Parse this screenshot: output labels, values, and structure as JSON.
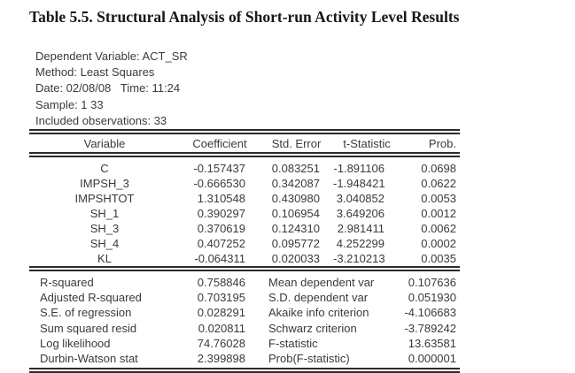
{
  "caption": "Table 5.5. Structural Analysis of Short-run Activity Level Results",
  "report_header": {
    "lines": [
      {
        "text": "Dependent Variable: ACT_SR"
      },
      {
        "text": "Method: Least Squares"
      },
      {
        "text": "Date: 02/08/08   Time: 11:24"
      },
      {
        "text": "Sample: 1 33"
      },
      {
        "text": "Included observations: 33"
      }
    ]
  },
  "coef_table": {
    "columns": [
      "Variable",
      "Coefficient",
      "Std. Error",
      "t-Statistic",
      "Prob."
    ],
    "rows": [
      {
        "variable": "C",
        "coefficient": "-0.157437",
        "std_error": "0.083251",
        "t_statistic": "-1.891106",
        "prob": "0.0698"
      },
      {
        "variable": "IMPSH_3",
        "coefficient": "-0.666530",
        "std_error": "0.342087",
        "t_statistic": "-1.948421",
        "prob": "0.0622"
      },
      {
        "variable": "IMPSHTOT",
        "coefficient": "1.310548",
        "std_error": "0.430980",
        "t_statistic": "3.040852",
        "prob": "0.0053"
      },
      {
        "variable": "SH_1",
        "coefficient": "0.390297",
        "std_error": "0.106954",
        "t_statistic": "3.649206",
        "prob": "0.0012"
      },
      {
        "variable": "SH_3",
        "coefficient": "0.370619",
        "std_error": "0.124310",
        "t_statistic": "2.981411",
        "prob": "0.0062"
      },
      {
        "variable": "SH_4",
        "coefficient": "0.407252",
        "std_error": "0.095772",
        "t_statistic": "4.252299",
        "prob": "0.0002"
      },
      {
        "variable": "KL",
        "coefficient": "-0.064311",
        "std_error": "0.020033",
        "t_statistic": "-3.210213",
        "prob": "0.0035"
      }
    ]
  },
  "summary_stats": {
    "rows": [
      {
        "label_left": "R-squared",
        "value_left": "0.758846",
        "label_right": "Mean dependent var",
        "value_right": "0.107636"
      },
      {
        "label_left": "Adjusted R-squared",
        "value_left": "0.703195",
        "label_right": "S.D. dependent var",
        "value_right": "0.051930"
      },
      {
        "label_left": "S.E. of regression",
        "value_left": "0.028291",
        "label_right": "Akaike info criterion",
        "value_right": "-4.106683"
      },
      {
        "label_left": "Sum squared resid",
        "value_left": "0.020811",
        "label_right": "Schwarz criterion",
        "value_right": "-3.789242"
      },
      {
        "label_left": "Log likelihood",
        "value_left": "74.76028",
        "label_right": "F-statistic",
        "value_right": "13.63581"
      },
      {
        "label_left": "Durbin-Watson stat",
        "value_left": "2.399898",
        "label_right": "Prob(F-statistic)",
        "value_right": "0.000001"
      }
    ]
  }
}
